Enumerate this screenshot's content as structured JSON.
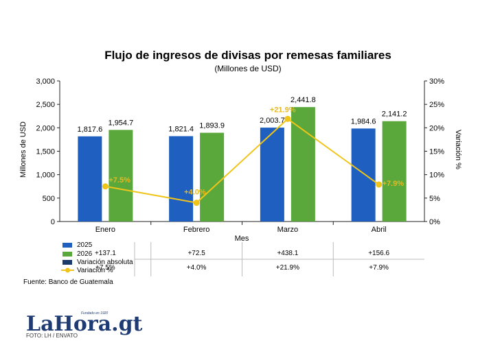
{
  "chart_data": {
    "type": "bar",
    "title": "Flujo de ingresos de divisas por remesas familiares",
    "subtitle": "(Millones de USD)",
    "xlabel": "Mes",
    "ylabel": "Millones de USD",
    "y2label": "Variación %",
    "categories": [
      "Enero",
      "Febrero",
      "Marzo",
      "Abril"
    ],
    "ylim": [
      0,
      3000
    ],
    "y2lim": [
      0,
      30
    ],
    "yticks": [
      "0",
      "500",
      "1,000",
      "1,500",
      "2,000",
      "2,500",
      "3,000"
    ],
    "y2ticks": [
      "0%",
      "5%",
      "10%",
      "15%",
      "20%",
      "25%",
      "30%"
    ],
    "series": [
      {
        "name": "2025",
        "type": "bar",
        "color": "#1f5fbf",
        "values": [
          1817.6,
          1821.4,
          2003.7,
          1984.6
        ],
        "labels": [
          "1,817.6",
          "1,821.4",
          "2,003.7",
          "1,984.6"
        ]
      },
      {
        "name": "2026",
        "type": "bar",
        "color": "#5aa83c",
        "values": [
          1954.7,
          1893.9,
          2441.8,
          2141.2
        ],
        "labels": [
          "1,954.7",
          "1,893.9",
          "2,441.8",
          "2,141.2"
        ]
      },
      {
        "name": "Variación %",
        "type": "line",
        "axis": "right",
        "color": "#f0c419",
        "values": [
          7.5,
          4.0,
          21.9,
          7.9
        ],
        "labels": [
          "+7.5%",
          "+4.0%",
          "+21.9%",
          "+7.9%"
        ]
      }
    ],
    "table": {
      "legend": [
        "2025",
        "2026",
        "Variación absoluta",
        "Variación %"
      ],
      "absolute_row": [
        "+137.1",
        "+72.5",
        "+438.1",
        "+156.6"
      ],
      "percent_row": [
        "+7.5%",
        "+4.0%",
        "+21.9%",
        "+7.9%"
      ],
      "absolute_color": "#1a3a6b"
    },
    "grid": false
  },
  "source": "Fuente: Banco de Guatemala",
  "logo": {
    "text": "LaHora.gt",
    "tagline": "Fundado en 1920",
    "color": "#1f3b73"
  },
  "photo_credit": "FOTO: LH / ENVATO"
}
